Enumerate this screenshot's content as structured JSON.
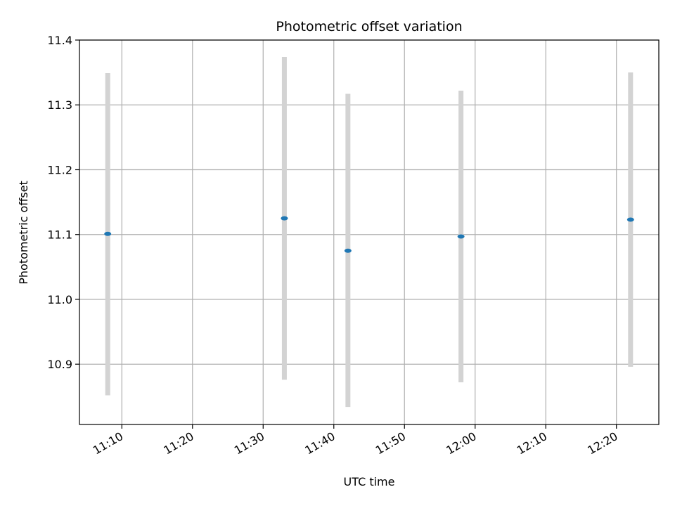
{
  "chart_data": {
    "type": "scatter",
    "title": "Photometric offset variation",
    "xlabel": "UTC time",
    "ylabel": "Photometric offset",
    "grid": true,
    "x_tick_labels": [
      "11:10",
      "11:20",
      "11:30",
      "11:40",
      "11:50",
      "12:00",
      "12:10",
      "12:20"
    ],
    "y_tick_labels": [
      "10.9",
      "11.0",
      "11.1",
      "11.2",
      "11.3",
      "11.4"
    ],
    "xlim": [
      "11:04",
      "12:26"
    ],
    "ylim": [
      10.807,
      11.4
    ],
    "points": [
      {
        "x": "11:08",
        "y": 11.101,
        "yerr_low": 10.852,
        "yerr_high": 11.349
      },
      {
        "x": "11:33",
        "y": 11.125,
        "yerr_low": 10.876,
        "yerr_high": 11.374
      },
      {
        "x": "11:42",
        "y": 11.075,
        "yerr_low": 10.834,
        "yerr_high": 11.317
      },
      {
        "x": "11:58",
        "y": 11.097,
        "yerr_low": 10.872,
        "yerr_high": 11.322
      },
      {
        "x": "12:22",
        "y": 11.123,
        "yerr_low": 10.896,
        "yerr_high": 11.35
      }
    ],
    "colors": {
      "marker": "#1f77b4",
      "errorbar": "#d3d3d3",
      "grid": "#b0b0b0",
      "axes": "#000000"
    }
  }
}
